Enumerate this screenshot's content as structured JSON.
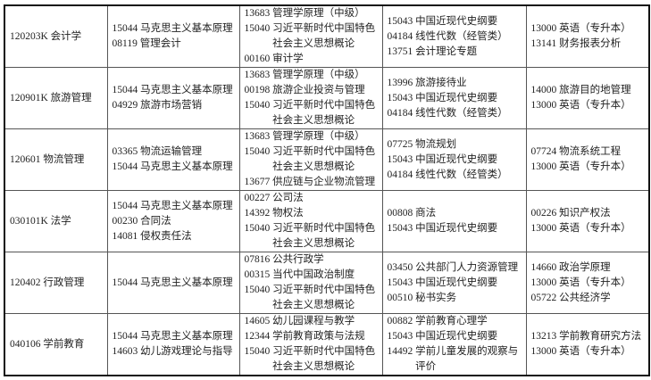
{
  "rows": [
    {
      "major": "120203K 会计学",
      "cols": [
        [
          {
            "code": "15044",
            "name": "马克思主义基本原理"
          },
          {
            "code": "08119",
            "name": "管理会计"
          }
        ],
        [
          {
            "code": "13683",
            "name": "管理学原理（中级）"
          },
          {
            "code": "15040",
            "name": "习近平新时代中国特色社会主义思想概论"
          },
          {
            "code": "00160",
            "name": "审计学"
          }
        ],
        [
          {
            "code": "15043",
            "name": "中国近现代史纲要"
          },
          {
            "code": "04184",
            "name": "线性代数（经管类）"
          },
          {
            "code": "13751",
            "name": "会计理论专题"
          }
        ],
        [
          {
            "code": "13000",
            "name": "英语（专升本）"
          },
          {
            "code": "13141",
            "name": "财务报表分析"
          }
        ]
      ]
    },
    {
      "major": "120901K 旅游管理",
      "cols": [
        [
          {
            "code": "15044",
            "name": "马克思主义基本原理"
          },
          {
            "code": "04929",
            "name": "旅游市场营销"
          }
        ],
        [
          {
            "code": "13683",
            "name": "管理学原理（中级）"
          },
          {
            "code": "00198",
            "name": "旅游企业投资与管理"
          },
          {
            "code": "15040",
            "name": "习近平新时代中国特色社会主义思想概论"
          }
        ],
        [
          {
            "code": "13996",
            "name": "旅游接待业"
          },
          {
            "code": "15043",
            "name": "中国近现代史纲要"
          },
          {
            "code": "04184",
            "name": "线性代数（经管类）"
          }
        ],
        [
          {
            "code": "14000",
            "name": "旅游目的地管理"
          },
          {
            "code": "13000",
            "name": "英语（专升本）"
          }
        ]
      ]
    },
    {
      "major": "120601 物流管理",
      "cols": [
        [
          {
            "code": "03365",
            "name": "物流运输管理"
          },
          {
            "code": "15044",
            "name": "马克思主义基本原理"
          }
        ],
        [
          {
            "code": "13683",
            "name": "管理学原理（中级）"
          },
          {
            "code": "15040",
            "name": "习近平新时代中国特色社会主义思想概论"
          },
          {
            "code": "13677",
            "name": "供应链与企业物流管理"
          }
        ],
        [
          {
            "code": "07725",
            "name": "物流规划"
          },
          {
            "code": "15043",
            "name": "中国近现代史纲要"
          },
          {
            "code": "04184",
            "name": "线性代数（经管类）"
          }
        ],
        [
          {
            "code": "07724",
            "name": "物流系统工程"
          },
          {
            "code": "13000",
            "name": "英语（专升本）"
          }
        ]
      ]
    },
    {
      "major": "030101K 法学",
      "cols": [
        [
          {
            "code": "15044",
            "name": "马克思主义基本原理"
          },
          {
            "code": "00230",
            "name": "合同法"
          },
          {
            "code": "14081",
            "name": "侵权责任法"
          }
        ],
        [
          {
            "code": "00227",
            "name": "公司法"
          },
          {
            "code": "14392",
            "name": "物权法"
          },
          {
            "code": "15040",
            "name": "习近平新时代中国特色社会主义思想概论"
          }
        ],
        [
          {
            "code": "00808",
            "name": "商法"
          },
          {
            "code": "15043",
            "name": "中国近现代史纲要"
          }
        ],
        [
          {
            "code": "00226",
            "name": "知识产权法"
          },
          {
            "code": "13000",
            "name": "英语（专升本）"
          }
        ]
      ]
    },
    {
      "major": "120402 行政管理",
      "cols": [
        [
          {
            "code": "15044",
            "name": "马克思主义基本原理"
          }
        ],
        [
          {
            "code": "07816",
            "name": "公共行政学"
          },
          {
            "code": "00315",
            "name": "当代中国政治制度"
          },
          {
            "code": "15040",
            "name": "习近平新时代中国特色社会主义思想概论"
          }
        ],
        [
          {
            "code": "03450",
            "name": "公共部门人力资源管理"
          },
          {
            "code": "15043",
            "name": "中国近现代史纲要"
          },
          {
            "code": "00510",
            "name": "秘书实务"
          }
        ],
        [
          {
            "code": "14660",
            "name": "政治学原理"
          },
          {
            "code": "13000",
            "name": "英语（专升本）"
          },
          {
            "code": "05722",
            "name": "公共经济学"
          }
        ]
      ]
    },
    {
      "major": "040106 学前教育",
      "cols": [
        [
          {
            "code": "15044",
            "name": "马克思主义基本原理"
          },
          {
            "code": "14603",
            "name": "幼儿游戏理论与指导"
          }
        ],
        [
          {
            "code": "14605",
            "name": "幼儿园课程与教学"
          },
          {
            "code": "12344",
            "name": "学前教育政策与法规"
          },
          {
            "code": "15040",
            "name": "习近平新时代中国特色社会主义思想概论"
          }
        ],
        [
          {
            "code": "00882",
            "name": "学前教育心理学"
          },
          {
            "code": "15043",
            "name": "中国近现代史纲要"
          },
          {
            "code": "14492",
            "name": "学前儿童发展的观察与评价"
          }
        ],
        [
          {
            "code": "13213",
            "name": "学前教育研究方法"
          },
          {
            "code": "13000",
            "name": "英语（专升本）"
          }
        ]
      ]
    }
  ]
}
